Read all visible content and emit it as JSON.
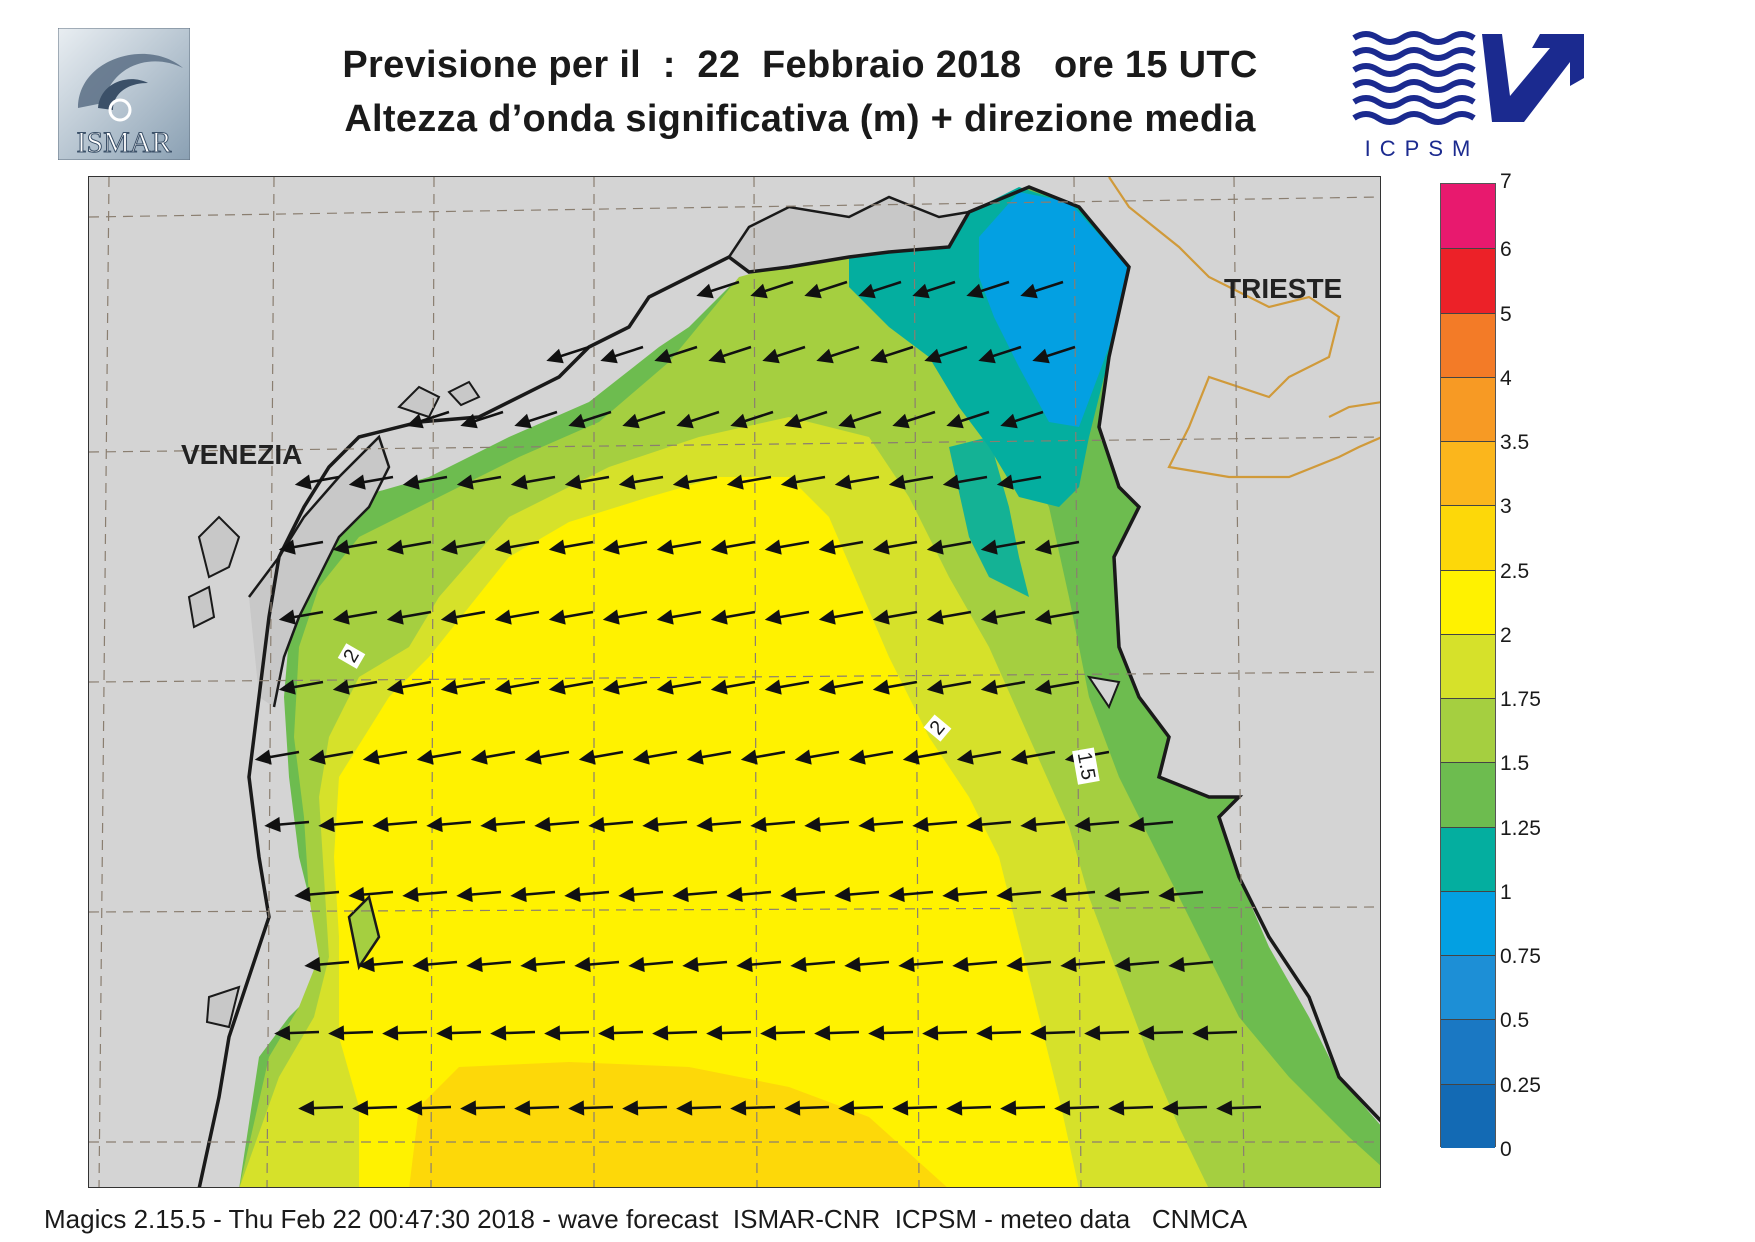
{
  "header": {
    "title_line1": "Previsione per il  :  22  Febbraio 2018   ore 15 UTC",
    "title_line2": "Altezza d’onda significativa (m) + direzione media",
    "logo_left_text": "ISMAR",
    "logo_right_text": "ICPSM"
  },
  "map": {
    "cities": [
      {
        "name": "VENEZIA"
      },
      {
        "name": "TRIESTE"
      }
    ],
    "contour_labels": [
      "2",
      "2",
      "1.5"
    ],
    "mean_wave_direction": "toward west-southwest",
    "colors": {
      "land": "#d4d4d4",
      "coast": "#1a1a1a",
      "border": "#d09a3a",
      "grid": "#8a7e70"
    }
  },
  "colorbar": {
    "unit": "m",
    "labels": [
      "7",
      "6",
      "5",
      "4",
      "3.5",
      "3",
      "2.5",
      "2",
      "1.75",
      "1.5",
      "1.25",
      "1",
      "0.75",
      "0.5",
      "0.25",
      "0"
    ],
    "colors": [
      "#e8196e",
      "#ec2128",
      "#f37b27",
      "#f79a24",
      "#fbb61c",
      "#fdd809",
      "#fff200",
      "#d6e12a",
      "#a5cf40",
      "#6dbc4f",
      "#04ae9f",
      "#03a0e2",
      "#1d8fd6",
      "#1a78c3",
      "#136ab4"
    ]
  },
  "footer": {
    "text": "Magics 2.15.5 - Thu Feb 22 00:47:30 2018 - wave forecast  ISMAR-CNR  ICPSM - meteo data   CNMCA"
  }
}
